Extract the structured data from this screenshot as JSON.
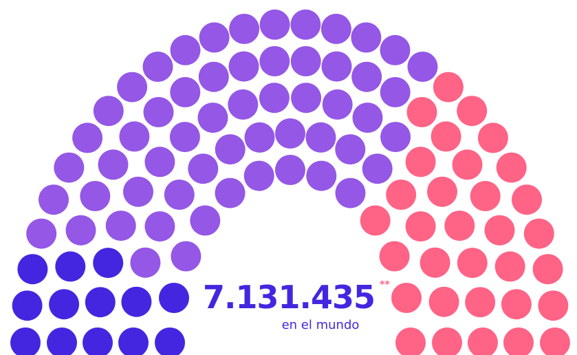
{
  "chart_data": {
    "type": "parliament",
    "groups": [
      {
        "color": "#4426e0",
        "seats": 13
      },
      {
        "color": "#9457e6",
        "seats": 57
      },
      {
        "color": "#ff6385",
        "seats": 32
      }
    ],
    "total_label": "7.131.435",
    "footnote_mark": "**",
    "subtitle": "en el mundo"
  }
}
